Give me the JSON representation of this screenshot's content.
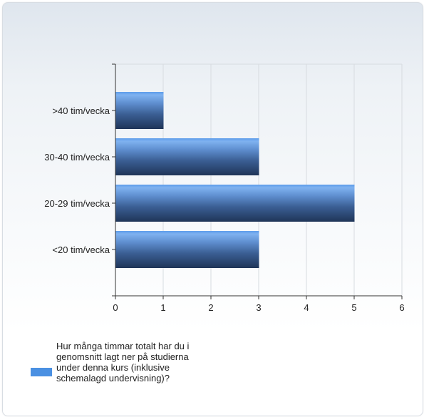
{
  "chart_data": {
    "type": "bar",
    "orientation": "horizontal",
    "categories": [
      ">40 tim/vecka",
      "30-40 tim/vecka",
      "20-29 tim/vecka",
      "<20 tim/vecka"
    ],
    "series": [
      {
        "name": "Hur många timmar totalt har du i genomsnitt lagt ner på studierna under denna kurs (inklusive schemalagd undervisning)?",
        "values": [
          1,
          3,
          5,
          3
        ]
      }
    ],
    "xlim": [
      0,
      6
    ],
    "xticks": [
      "0",
      "1",
      "2",
      "3",
      "4",
      "5",
      "6"
    ],
    "grid": true,
    "legend_position": "bottom-left",
    "bar_color": "#4a90e2",
    "bar_dark_color": "#1f3558"
  }
}
